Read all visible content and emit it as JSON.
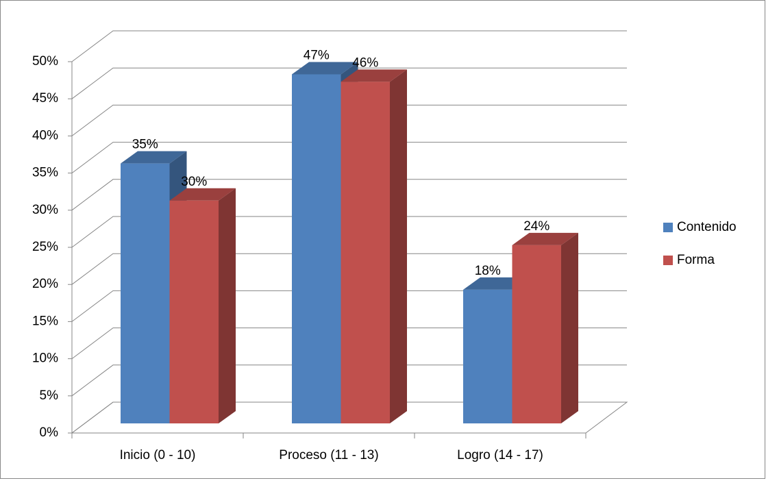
{
  "chart_data": {
    "type": "bar3d",
    "categories": [
      "Inicio (0 - 10)",
      "Proceso (11 - 13)",
      "Logro (14 - 17)"
    ],
    "series": [
      {
        "name": "Contenido",
        "color": "#4f81bd",
        "values": [
          35,
          47,
          18
        ],
        "value_labels": [
          "35%",
          "47%",
          "18%"
        ]
      },
      {
        "name": "Forma",
        "color": "#c0504d",
        "values": [
          30,
          46,
          24
        ],
        "value_labels": [
          "30%",
          "46%",
          "24%"
        ]
      }
    ],
    "ylim": [
      0,
      50
    ],
    "yticks": [
      {
        "value": 0,
        "label": "0%"
      },
      {
        "value": 5,
        "label": "5%"
      },
      {
        "value": 10,
        "label": "10%"
      },
      {
        "value": 15,
        "label": "15%"
      },
      {
        "value": 20,
        "label": "20%"
      },
      {
        "value": 25,
        "label": "25%"
      },
      {
        "value": 30,
        "label": "30%"
      },
      {
        "value": 35,
        "label": "35%"
      },
      {
        "value": 40,
        "label": "40%"
      },
      {
        "value": 45,
        "label": "45%"
      },
      {
        "value": 50,
        "label": "50%"
      }
    ],
    "grid": true,
    "legend": "right"
  }
}
